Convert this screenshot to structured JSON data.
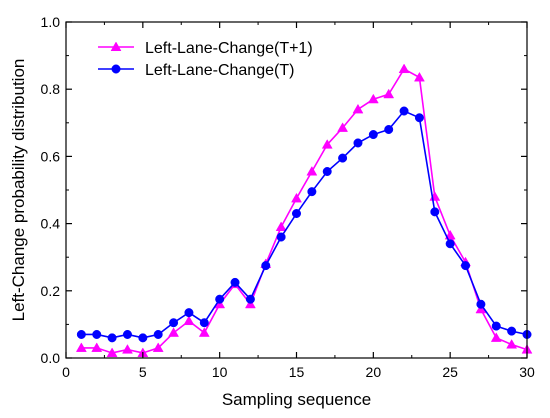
{
  "chart_data": {
    "type": "line",
    "xlabel": "Sampling sequence",
    "ylabel": "Left-Change probability distribution",
    "xlim": [
      0,
      30
    ],
    "ylim": [
      0.0,
      1.0
    ],
    "x_ticks": [
      0,
      5,
      10,
      15,
      20,
      25,
      30
    ],
    "y_ticks": [
      0.0,
      0.2,
      0.4,
      0.6,
      0.8,
      1.0
    ],
    "x_tick_labels": [
      "0",
      "5",
      "10",
      "15",
      "20",
      "25",
      "30"
    ],
    "y_tick_labels": [
      "0.0",
      "0.2",
      "0.4",
      "0.6",
      "0.8",
      "1.0"
    ],
    "grid": false,
    "legend_position": "top-left",
    "x": [
      1,
      2,
      3,
      4,
      5,
      6,
      7,
      8,
      9,
      10,
      11,
      12,
      13,
      14,
      15,
      16,
      17,
      18,
      19,
      20,
      21,
      22,
      23,
      24,
      25,
      26,
      27,
      28,
      29,
      30
    ],
    "series": [
      {
        "name": "Left-Lane-Change(T+1)",
        "marker": "triangle",
        "color": "#ff00ff",
        "values": [
          0.03,
          0.03,
          0.015,
          0.025,
          0.015,
          0.03,
          0.075,
          0.11,
          0.075,
          0.16,
          0.22,
          0.16,
          0.28,
          0.39,
          0.475,
          0.555,
          0.635,
          0.685,
          0.74,
          0.77,
          0.785,
          0.86,
          0.835,
          0.48,
          0.365,
          0.285,
          0.145,
          0.06,
          0.04,
          0.025
        ]
      },
      {
        "name": "Left-Lane-Change(T)",
        "marker": "circle",
        "color": "#0000ff",
        "values": [
          0.07,
          0.07,
          0.06,
          0.07,
          0.06,
          0.07,
          0.105,
          0.135,
          0.105,
          0.175,
          0.225,
          0.175,
          0.275,
          0.36,
          0.43,
          0.495,
          0.555,
          0.595,
          0.64,
          0.665,
          0.68,
          0.735,
          0.715,
          0.435,
          0.34,
          0.275,
          0.16,
          0.095,
          0.08,
          0.07
        ]
      }
    ]
  }
}
